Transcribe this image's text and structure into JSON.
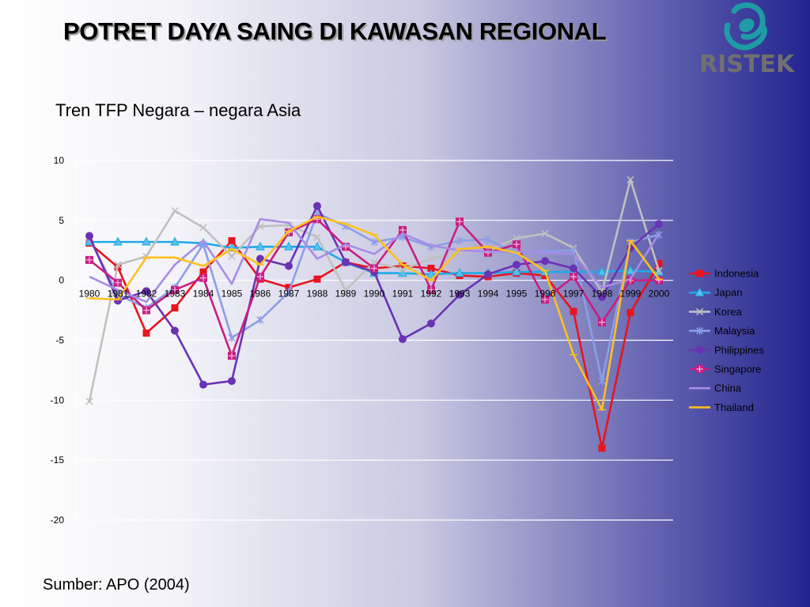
{
  "slide": {
    "title": "POTRET DAYA SAING DI KAWASAN REGIONAL",
    "source": "Sumber: APO (2004)"
  },
  "logo": {
    "text": "RISTEK",
    "icon": "ristek-swirl-icon",
    "colors": {
      "swirl": "#1e9ca6",
      "text": "#707070"
    }
  },
  "chart_data": {
    "type": "line",
    "title": "Tren TFP Negara – negara Asia",
    "xlabel": "",
    "ylabel": "",
    "x": [
      "1980",
      "1981",
      "1982",
      "1983",
      "1984",
      "1985",
      "1986",
      "1987",
      "1988",
      "1989",
      "1990",
      "1991",
      "1992",
      "1993",
      "1994",
      "1995",
      "1996",
      "1997",
      "1998",
      "1999",
      "2000"
    ],
    "ylim": [
      -20,
      10
    ],
    "yticks": [
      10,
      5,
      0,
      -5,
      -10,
      -15,
      -20
    ],
    "grid": true,
    "legend_position": "right",
    "series": [
      {
        "name": "Indonesia",
        "color": "#e8141e",
        "marker": "square",
        "values": [
          3.1,
          1.1,
          -4.4,
          -2.3,
          0.7,
          3.3,
          0.1,
          -0.6,
          0.1,
          1.5,
          1.0,
          1.2,
          1.0,
          0.4,
          0.3,
          0.6,
          0.4,
          -2.6,
          -14.0,
          -2.7,
          1.4
        ]
      },
      {
        "name": "Japan",
        "color": "#1eaae6",
        "marker": "triangle",
        "values": [
          3.2,
          3.2,
          3.2,
          3.2,
          3.1,
          2.7,
          2.8,
          2.8,
          2.8,
          1.5,
          0.6,
          0.6,
          0.5,
          0.6,
          0.6,
          0.7,
          0.7,
          0.7,
          0.7,
          0.8,
          0.7
        ]
      },
      {
        "name": "Korea",
        "color": "#c0c0c0",
        "marker": "x",
        "values": [
          -10.1,
          1.3,
          2.0,
          5.8,
          4.4,
          2.0,
          4.5,
          4.6,
          3.6,
          -0.8,
          1.5,
          0.9,
          1.8,
          2.4,
          2.5,
          3.5,
          3.9,
          2.7,
          -1.0,
          8.4,
          0.8
        ]
      },
      {
        "name": "Malaysia",
        "color": "#8c9ee6",
        "marker": "asterisk",
        "values": [
          3.5,
          -1.2,
          -2.3,
          -0.6,
          3.0,
          -4.8,
          -3.3,
          -1.0,
          5.6,
          4.5,
          3.2,
          3.6,
          2.8,
          3.3,
          3.4,
          2.2,
          2.4,
          2.5,
          -8.4,
          3.2,
          3.8
        ]
      },
      {
        "name": "Philippines",
        "color": "#6a32b4",
        "marker": "circle",
        "values": [
          3.7,
          -1.7,
          -0.9,
          -4.2,
          -8.7,
          -8.4,
          1.8,
          1.2,
          6.2,
          1.5,
          0.7,
          -4.9,
          -3.6,
          -1.2,
          0.5,
          1.3,
          1.6,
          1.0,
          -1.4,
          2.7,
          4.7
        ]
      },
      {
        "name": "Singapore",
        "color": "#c81e82",
        "marker": "square-cross",
        "values": [
          1.7,
          -0.2,
          -2.5,
          -0.8,
          0.2,
          -6.3,
          0.3,
          4.0,
          5.1,
          2.8,
          1.0,
          4.2,
          -0.8,
          4.9,
          2.3,
          3.0,
          -1.6,
          0.3,
          -3.5,
          0.0,
          0.0
        ]
      },
      {
        "name": "China",
        "color": "#a78ce6",
        "marker": "none",
        "values": [
          0.3,
          -0.8,
          -1.8,
          1.3,
          3.3,
          -0.3,
          5.1,
          4.8,
          1.8,
          3.0,
          2.2,
          3.9,
          2.9,
          2.5,
          2.4,
          2.4,
          2.3,
          2.2,
          -0.6,
          0.1,
          3.9
        ]
      },
      {
        "name": "Thailand",
        "color": "#ffc01e",
        "marker": "dash",
        "values": [
          -1.5,
          -1.6,
          1.9,
          1.9,
          1.2,
          2.6,
          1.3,
          4.1,
          5.3,
          4.7,
          3.8,
          1.3,
          0.0,
          2.6,
          2.8,
          2.3,
          0.8,
          -6.2,
          -10.8,
          3.3,
          0.1
        ]
      }
    ]
  }
}
